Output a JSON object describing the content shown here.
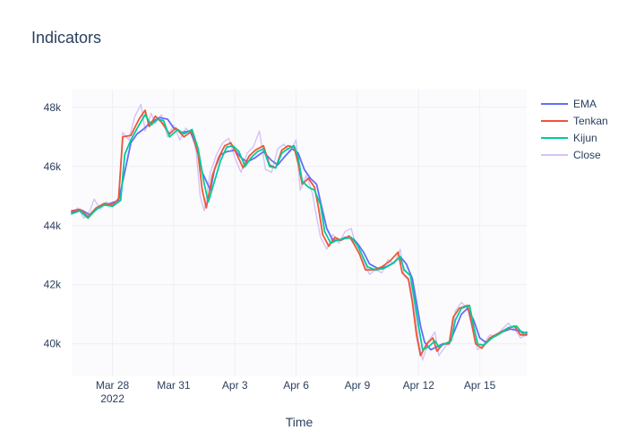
{
  "chart_data": {
    "type": "line",
    "title": "Indicators",
    "xlabel": "Time",
    "ylabel": "",
    "x_unit": "day (2022, Mar 26 = 0)",
    "x_range": [
      0,
      22.3
    ],
    "ylim": [
      38900,
      48600
    ],
    "grid": true,
    "legend_position": "top-right",
    "x_ticks": [
      {
        "x": 2,
        "label": "Mar 28",
        "sublabel": "2022"
      },
      {
        "x": 5,
        "label": "Mar 31"
      },
      {
        "x": 8,
        "label": "Apr 3"
      },
      {
        "x": 11,
        "label": "Apr 6"
      },
      {
        "x": 14,
        "label": "Apr 9"
      },
      {
        "x": 17,
        "label": "Apr 12"
      },
      {
        "x": 20,
        "label": "Apr 15"
      }
    ],
    "y_ticks": [
      {
        "y": 40000,
        "label": "40k"
      },
      {
        "y": 42000,
        "label": "42k"
      },
      {
        "y": 44000,
        "label": "44k"
      },
      {
        "y": 46000,
        "label": "46k"
      },
      {
        "y": 48000,
        "label": "48k"
      }
    ],
    "series": [
      {
        "name": "EMA",
        "color": "#636efa",
        "width": 1.8,
        "points": [
          [
            0,
            44450
          ],
          [
            0.5,
            44520
          ],
          [
            0.9,
            44360
          ],
          [
            1.4,
            44650
          ],
          [
            1.9,
            44750
          ],
          [
            2.3,
            44850
          ],
          [
            2.6,
            45800
          ],
          [
            2.9,
            46800
          ],
          [
            3.2,
            47100
          ],
          [
            3.5,
            47250
          ],
          [
            3.9,
            47500
          ],
          [
            4.3,
            47650
          ],
          [
            4.7,
            47600
          ],
          [
            5.0,
            47300
          ],
          [
            5.4,
            47150
          ],
          [
            5.8,
            47200
          ],
          [
            6.1,
            46700
          ],
          [
            6.4,
            45800
          ],
          [
            6.8,
            45200
          ],
          [
            7.0,
            45900
          ],
          [
            7.3,
            46400
          ],
          [
            7.6,
            46500
          ],
          [
            8.0,
            46550
          ],
          [
            8.3,
            46300
          ],
          [
            8.6,
            46150
          ],
          [
            9.0,
            46300
          ],
          [
            9.4,
            46500
          ],
          [
            9.8,
            46200
          ],
          [
            10.1,
            46050
          ],
          [
            10.4,
            46300
          ],
          [
            10.8,
            46600
          ],
          [
            11.1,
            46450
          ],
          [
            11.4,
            45900
          ],
          [
            11.7,
            45600
          ],
          [
            12.0,
            45400
          ],
          [
            12.2,
            44800
          ],
          [
            12.5,
            43900
          ],
          [
            12.8,
            43500
          ],
          [
            13.1,
            43500
          ],
          [
            13.4,
            43600
          ],
          [
            13.8,
            43550
          ],
          [
            14.0,
            43400
          ],
          [
            14.3,
            43100
          ],
          [
            14.6,
            42700
          ],
          [
            15.0,
            42550
          ],
          [
            15.4,
            42600
          ],
          [
            15.8,
            42750
          ],
          [
            16.1,
            42950
          ],
          [
            16.4,
            42700
          ],
          [
            16.7,
            42200
          ],
          [
            16.9,
            41400
          ],
          [
            17.1,
            40600
          ],
          [
            17.3,
            40050
          ],
          [
            17.6,
            39800
          ],
          [
            17.9,
            39900
          ],
          [
            18.2,
            40000
          ],
          [
            18.5,
            40000
          ],
          [
            18.8,
            40500
          ],
          [
            19.1,
            41000
          ],
          [
            19.4,
            41200
          ],
          [
            19.7,
            40800
          ],
          [
            20.0,
            40200
          ],
          [
            20.3,
            40050
          ],
          [
            20.7,
            40250
          ],
          [
            21.1,
            40400
          ],
          [
            21.5,
            40500
          ],
          [
            21.9,
            40450
          ],
          [
            22.3,
            40350
          ]
        ]
      },
      {
        "name": "Tenkan",
        "color": "#ef553b",
        "width": 1.8,
        "points": [
          [
            0,
            44500
          ],
          [
            0.4,
            44550
          ],
          [
            0.8,
            44300
          ],
          [
            1.2,
            44600
          ],
          [
            1.6,
            44750
          ],
          [
            2.0,
            44700
          ],
          [
            2.3,
            44900
          ],
          [
            2.5,
            47000
          ],
          [
            2.9,
            47050
          ],
          [
            3.3,
            47600
          ],
          [
            3.6,
            47900
          ],
          [
            3.8,
            47350
          ],
          [
            4.1,
            47700
          ],
          [
            4.4,
            47500
          ],
          [
            4.8,
            47100
          ],
          [
            5.1,
            47300
          ],
          [
            5.5,
            47000
          ],
          [
            5.9,
            47200
          ],
          [
            6.2,
            46400
          ],
          [
            6.4,
            45200
          ],
          [
            6.6,
            44600
          ],
          [
            6.9,
            45700
          ],
          [
            7.2,
            46300
          ],
          [
            7.5,
            46700
          ],
          [
            7.8,
            46800
          ],
          [
            8.1,
            46400
          ],
          [
            8.4,
            45950
          ],
          [
            8.7,
            46350
          ],
          [
            9.0,
            46550
          ],
          [
            9.4,
            46700
          ],
          [
            9.7,
            46050
          ],
          [
            10.0,
            45950
          ],
          [
            10.3,
            46550
          ],
          [
            10.6,
            46700
          ],
          [
            10.9,
            46650
          ],
          [
            11.1,
            46100
          ],
          [
            11.3,
            45400
          ],
          [
            11.6,
            45600
          ],
          [
            11.9,
            45300
          ],
          [
            12.1,
            44600
          ],
          [
            12.3,
            43700
          ],
          [
            12.6,
            43300
          ],
          [
            12.9,
            43600
          ],
          [
            13.2,
            43500
          ],
          [
            13.6,
            43650
          ],
          [
            13.9,
            43300
          ],
          [
            14.1,
            43050
          ],
          [
            14.4,
            42500
          ],
          [
            14.8,
            42500
          ],
          [
            15.2,
            42600
          ],
          [
            15.6,
            42800
          ],
          [
            16.0,
            43100
          ],
          [
            16.2,
            42400
          ],
          [
            16.5,
            42200
          ],
          [
            16.7,
            41400
          ],
          [
            16.9,
            40300
          ],
          [
            17.1,
            39600
          ],
          [
            17.4,
            40000
          ],
          [
            17.7,
            40200
          ],
          [
            17.9,
            39750
          ],
          [
            18.2,
            40000
          ],
          [
            18.5,
            40000
          ],
          [
            18.7,
            40900
          ],
          [
            19.0,
            41200
          ],
          [
            19.4,
            41300
          ],
          [
            19.6,
            40700
          ],
          [
            19.8,
            40000
          ],
          [
            20.1,
            39850
          ],
          [
            20.5,
            40200
          ],
          [
            20.9,
            40350
          ],
          [
            21.3,
            40500
          ],
          [
            21.7,
            40600
          ],
          [
            22.0,
            40300
          ],
          [
            22.3,
            40300
          ]
        ]
      },
      {
        "name": "Kijun",
        "color": "#00cc96",
        "width": 1.8,
        "points": [
          [
            0,
            44400
          ],
          [
            0.4,
            44500
          ],
          [
            0.8,
            44250
          ],
          [
            1.2,
            44550
          ],
          [
            1.6,
            44700
          ],
          [
            2.0,
            44650
          ],
          [
            2.4,
            44850
          ],
          [
            2.6,
            46400
          ],
          [
            2.9,
            46900
          ],
          [
            3.3,
            47400
          ],
          [
            3.6,
            47750
          ],
          [
            3.9,
            47400
          ],
          [
            4.2,
            47600
          ],
          [
            4.5,
            47550
          ],
          [
            4.8,
            47000
          ],
          [
            5.2,
            47250
          ],
          [
            5.5,
            47100
          ],
          [
            5.9,
            47250
          ],
          [
            6.2,
            46600
          ],
          [
            6.5,
            45400
          ],
          [
            6.7,
            44800
          ],
          [
            7.0,
            45500
          ],
          [
            7.3,
            46200
          ],
          [
            7.6,
            46650
          ],
          [
            7.9,
            46700
          ],
          [
            8.2,
            46500
          ],
          [
            8.5,
            46000
          ],
          [
            8.8,
            46300
          ],
          [
            9.1,
            46500
          ],
          [
            9.4,
            46600
          ],
          [
            9.7,
            46000
          ],
          [
            10.0,
            45950
          ],
          [
            10.3,
            46450
          ],
          [
            10.6,
            46600
          ],
          [
            10.9,
            46700
          ],
          [
            11.1,
            46300
          ],
          [
            11.3,
            45500
          ],
          [
            11.6,
            45300
          ],
          [
            11.9,
            45200
          ],
          [
            12.2,
            44700
          ],
          [
            12.4,
            43800
          ],
          [
            12.7,
            43400
          ],
          [
            13.0,
            43500
          ],
          [
            13.3,
            43550
          ],
          [
            13.7,
            43600
          ],
          [
            14.0,
            43350
          ],
          [
            14.2,
            43050
          ],
          [
            14.5,
            42600
          ],
          [
            14.9,
            42500
          ],
          [
            15.3,
            42550
          ],
          [
            15.7,
            42700
          ],
          [
            16.1,
            42950
          ],
          [
            16.3,
            42500
          ],
          [
            16.6,
            42300
          ],
          [
            16.8,
            41500
          ],
          [
            17.0,
            40600
          ],
          [
            17.2,
            39800
          ],
          [
            17.5,
            39900
          ],
          [
            17.8,
            40100
          ],
          [
            18.0,
            39900
          ],
          [
            18.3,
            40000
          ],
          [
            18.6,
            40100
          ],
          [
            18.8,
            40800
          ],
          [
            19.1,
            41200
          ],
          [
            19.5,
            41300
          ],
          [
            19.7,
            40600
          ],
          [
            19.9,
            40000
          ],
          [
            20.2,
            39950
          ],
          [
            20.6,
            40200
          ],
          [
            21.0,
            40350
          ],
          [
            21.4,
            40550
          ],
          [
            21.8,
            40600
          ],
          [
            22.1,
            40350
          ],
          [
            22.3,
            40400
          ]
        ]
      },
      {
        "name": "Close",
        "color": "#d4c2f7",
        "width": 1.4,
        "points": [
          [
            0,
            44400
          ],
          [
            0.3,
            44600
          ],
          [
            0.6,
            44250
          ],
          [
            0.9,
            44500
          ],
          [
            1.1,
            44900
          ],
          [
            1.4,
            44550
          ],
          [
            1.7,
            44800
          ],
          [
            2.0,
            44650
          ],
          [
            2.3,
            44950
          ],
          [
            2.5,
            47150
          ],
          [
            2.8,
            46900
          ],
          [
            3.1,
            47700
          ],
          [
            3.4,
            48100
          ],
          [
            3.6,
            47200
          ],
          [
            3.9,
            47800
          ],
          [
            4.1,
            47450
          ],
          [
            4.4,
            47750
          ],
          [
            4.7,
            47000
          ],
          [
            5.0,
            47400
          ],
          [
            5.3,
            46900
          ],
          [
            5.6,
            47300
          ],
          [
            5.9,
            47050
          ],
          [
            6.1,
            46500
          ],
          [
            6.3,
            45000
          ],
          [
            6.5,
            44500
          ],
          [
            6.8,
            45800
          ],
          [
            7.1,
            46400
          ],
          [
            7.4,
            46800
          ],
          [
            7.7,
            46950
          ],
          [
            8.0,
            46300
          ],
          [
            8.3,
            45800
          ],
          [
            8.6,
            46450
          ],
          [
            8.9,
            46650
          ],
          [
            9.2,
            47200
          ],
          [
            9.5,
            45900
          ],
          [
            9.8,
            45800
          ],
          [
            10.1,
            46600
          ],
          [
            10.4,
            46750
          ],
          [
            10.7,
            46500
          ],
          [
            11.0,
            46900
          ],
          [
            11.2,
            45200
          ],
          [
            11.5,
            45700
          ],
          [
            11.8,
            45100
          ],
          [
            12.0,
            44300
          ],
          [
            12.2,
            43600
          ],
          [
            12.5,
            43200
          ],
          [
            12.8,
            43700
          ],
          [
            13.1,
            43400
          ],
          [
            13.4,
            43800
          ],
          [
            13.7,
            43900
          ],
          [
            14.0,
            43150
          ],
          [
            14.3,
            42800
          ],
          [
            14.6,
            42350
          ],
          [
            14.9,
            42500
          ],
          [
            15.2,
            42400
          ],
          [
            15.5,
            42850
          ],
          [
            15.8,
            42700
          ],
          [
            16.1,
            43200
          ],
          [
            16.3,
            42300
          ],
          [
            16.6,
            42050
          ],
          [
            16.8,
            41200
          ],
          [
            17.0,
            40100
          ],
          [
            17.2,
            39450
          ],
          [
            17.5,
            40100
          ],
          [
            17.8,
            40400
          ],
          [
            18.0,
            39600
          ],
          [
            18.3,
            39900
          ],
          [
            18.6,
            40100
          ],
          [
            18.8,
            41100
          ],
          [
            19.1,
            41400
          ],
          [
            19.4,
            41200
          ],
          [
            19.6,
            40600
          ],
          [
            19.9,
            39800
          ],
          [
            20.2,
            40000
          ],
          [
            20.5,
            40300
          ],
          [
            20.8,
            40250
          ],
          [
            21.1,
            40500
          ],
          [
            21.4,
            40700
          ],
          [
            21.7,
            40500
          ],
          [
            22.0,
            40200
          ],
          [
            22.3,
            40300
          ]
        ]
      }
    ]
  }
}
